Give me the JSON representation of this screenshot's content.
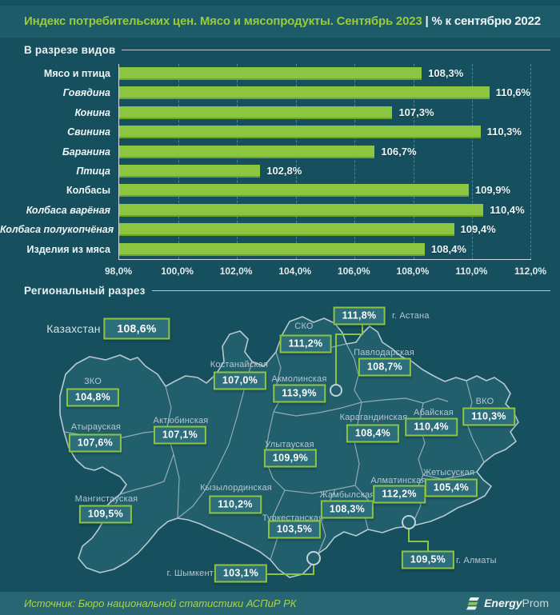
{
  "header": {
    "title_green": "Индекс потребительских цен. Мясо и мясопродукты. Сентябрь 2023",
    "divider": "|",
    "title_white": "% к сентябрю 2022"
  },
  "sections": {
    "chart_title": "В разрезе видов",
    "map_title": "Региональный разрез"
  },
  "chart_data": {
    "type": "bar",
    "orientation": "horizontal",
    "title": "В разрезе видов",
    "categories": [
      "Мясо и птица",
      "Говядина",
      "Конина",
      "Свинина",
      "Баранина",
      "Птица",
      "Колбасы",
      "Колбаса варёная",
      "Колбаса полукопчёная",
      "Изделия из мяса"
    ],
    "values": [
      108.3,
      110.6,
      107.3,
      110.3,
      106.7,
      102.8,
      109.9,
      110.4,
      109.4,
      108.4
    ],
    "value_labels": [
      "108,3%",
      "110,6%",
      "107,3%",
      "110,3%",
      "106,7%",
      "102,8%",
      "109,9%",
      "110,4%",
      "109,4%",
      "108,4%"
    ],
    "emphasized_categories": [
      "Мясо и птица",
      "Колбасы",
      "Изделия из мяса"
    ],
    "x_ticks": [
      "98,0%",
      "100,0%",
      "102,0%",
      "104,0%",
      "106,0%",
      "108,0%",
      "110,0%",
      "112,0%"
    ],
    "xlim": [
      98,
      112
    ],
    "grid": "dashed-vertical",
    "bar_color": "#8cc540",
    "legend": "none"
  },
  "map": {
    "country": {
      "label": "Казахстан",
      "value": "108,6%"
    },
    "regions": [
      {
        "name": "СКО",
        "value": "111,2%"
      },
      {
        "name": "г. Астана",
        "value": "111,8%"
      },
      {
        "name": "Павлодарская",
        "value": "108,7%"
      },
      {
        "name": "Костанайская",
        "value": "107,0%"
      },
      {
        "name": "Акмолинская",
        "value": "113,9%"
      },
      {
        "name": "ЗКО",
        "value": "104,8%"
      },
      {
        "name": "Атырауская",
        "value": "107,6%"
      },
      {
        "name": "Актюбинская",
        "value": "107,1%"
      },
      {
        "name": "Карагандинская",
        "value": "108,4%"
      },
      {
        "name": "Абайская",
        "value": "110,4%"
      },
      {
        "name": "ВКО",
        "value": "110,3%"
      },
      {
        "name": "Улытауская",
        "value": "109,9%"
      },
      {
        "name": "Мангистауская",
        "value": "109,5%"
      },
      {
        "name": "Кызылординская",
        "value": "110,2%"
      },
      {
        "name": "Жамбылская",
        "value": "108,3%"
      },
      {
        "name": "Алматинская",
        "value": "112,2%"
      },
      {
        "name": "Жетысуская",
        "value": "105,4%"
      },
      {
        "name": "Туркестанская",
        "value": "103,5%"
      },
      {
        "name": "г. Шымкент",
        "value": "103,1%"
      },
      {
        "name": "г. Алматы",
        "value": "109,5%"
      }
    ]
  },
  "footer": {
    "source": "Источник: Бюро национальной статистики АСПиР РК",
    "brand_bold": "Energy",
    "brand_light": "Prom"
  },
  "colors": {
    "background": "#16505e",
    "header_band": "#1e5b69",
    "accent_green": "#8cc540",
    "badge_fill": "#2c6e7c",
    "map_region_fill": "#215f6d",
    "map_border": "#a9bcc4",
    "footer_band": "#276672"
  }
}
